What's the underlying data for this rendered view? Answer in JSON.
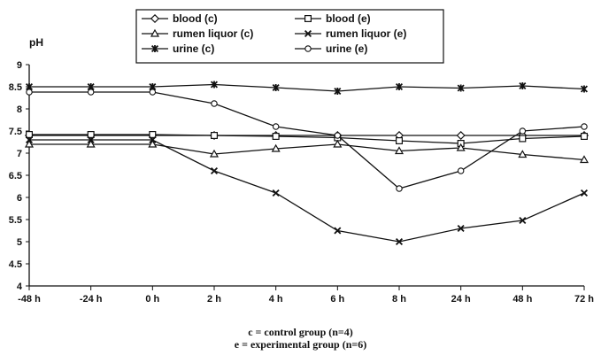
{
  "chart_data": {
    "type": "line",
    "ylabel": "pH",
    "xlabel": "",
    "categories": [
      "-48 h",
      "-24 h",
      "0 h",
      "2 h",
      "4 h",
      "6 h",
      "8 h",
      "24 h",
      "48 h",
      "72 h"
    ],
    "yticks": [
      "4",
      "4.5",
      "5",
      "5.5",
      "6",
      "6.5",
      "7",
      "7.5",
      "8",
      "8.5",
      "9"
    ],
    "ylim": [
      4,
      9
    ],
    "grid": false,
    "legend_position": "top",
    "series": [
      {
        "name": "blood (c)",
        "marker": "diamond",
        "values": [
          7.4,
          7.4,
          7.4,
          7.4,
          7.4,
          7.4,
          7.4,
          7.4,
          7.4,
          7.4
        ]
      },
      {
        "name": "blood (e)",
        "marker": "square",
        "values": [
          7.42,
          7.42,
          7.42,
          7.4,
          7.38,
          7.35,
          7.28,
          7.22,
          7.33,
          7.38
        ]
      },
      {
        "name": "rumen liquor (c)",
        "marker": "triangle",
        "values": [
          7.2,
          7.2,
          7.2,
          6.98,
          7.1,
          7.2,
          7.05,
          7.12,
          6.97,
          6.85
        ]
      },
      {
        "name": "rumen liquor (e)",
        "marker": "x",
        "values": [
          7.3,
          7.3,
          7.3,
          6.6,
          6.1,
          5.25,
          5.0,
          5.3,
          5.48,
          6.1
        ]
      },
      {
        "name": "urine (c)",
        "marker": "star",
        "values": [
          8.5,
          8.5,
          8.5,
          8.55,
          8.48,
          8.4,
          8.5,
          8.47,
          8.52,
          8.45
        ]
      },
      {
        "name": "urine (e)",
        "marker": "circle",
        "values": [
          8.38,
          8.38,
          8.38,
          8.12,
          7.6,
          7.4,
          6.2,
          6.6,
          7.5,
          7.6
        ]
      }
    ]
  },
  "notes": {
    "control": "c = control group (n=4)",
    "experimental": "e = experimental group (n=6)"
  }
}
